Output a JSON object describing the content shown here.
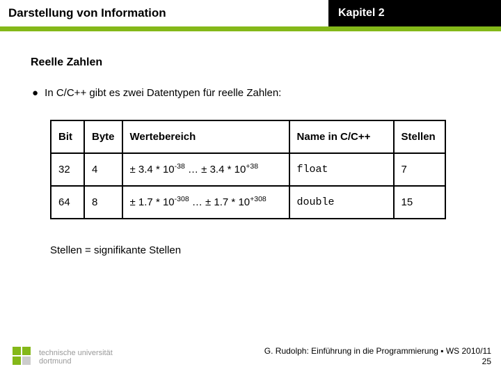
{
  "header": {
    "left": "Darstellung von Information",
    "right": "Kapitel 2"
  },
  "colors": {
    "accent": "#84b819",
    "header_right_bg": "#000000",
    "header_right_text": "#ffffff",
    "text": "#000000",
    "logo_grey": "#9a9a9a"
  },
  "section_title": "Reelle Zahlen",
  "bullet": "In C/C++ gibt es zwei Datentypen für reelle Zahlen:",
  "table": {
    "columns": [
      "Bit",
      "Byte",
      "Wertebereich",
      "Name in C/C++",
      "Stellen"
    ],
    "col_align": [
      "left",
      "center",
      "left",
      "center",
      "center"
    ],
    "rows": [
      {
        "bit": "32",
        "byte": "4",
        "range": {
          "mantissa": "3.4",
          "exp_low": "-38",
          "exp_high": "+38"
        },
        "name": "float",
        "stellen": "7"
      },
      {
        "bit": "64",
        "byte": "8",
        "range": {
          "mantissa": "1.7",
          "exp_low": "-308",
          "exp_high": "+308"
        },
        "name": "double",
        "stellen": "15"
      }
    ]
  },
  "note": "Stellen = signifikante Stellen",
  "footer": {
    "logo_line1": "technische universität",
    "logo_line2": "dortmund",
    "credit": "G. Rudolph: Einführung in die Programmierung ▪ WS 2010/11",
    "page": "25"
  }
}
